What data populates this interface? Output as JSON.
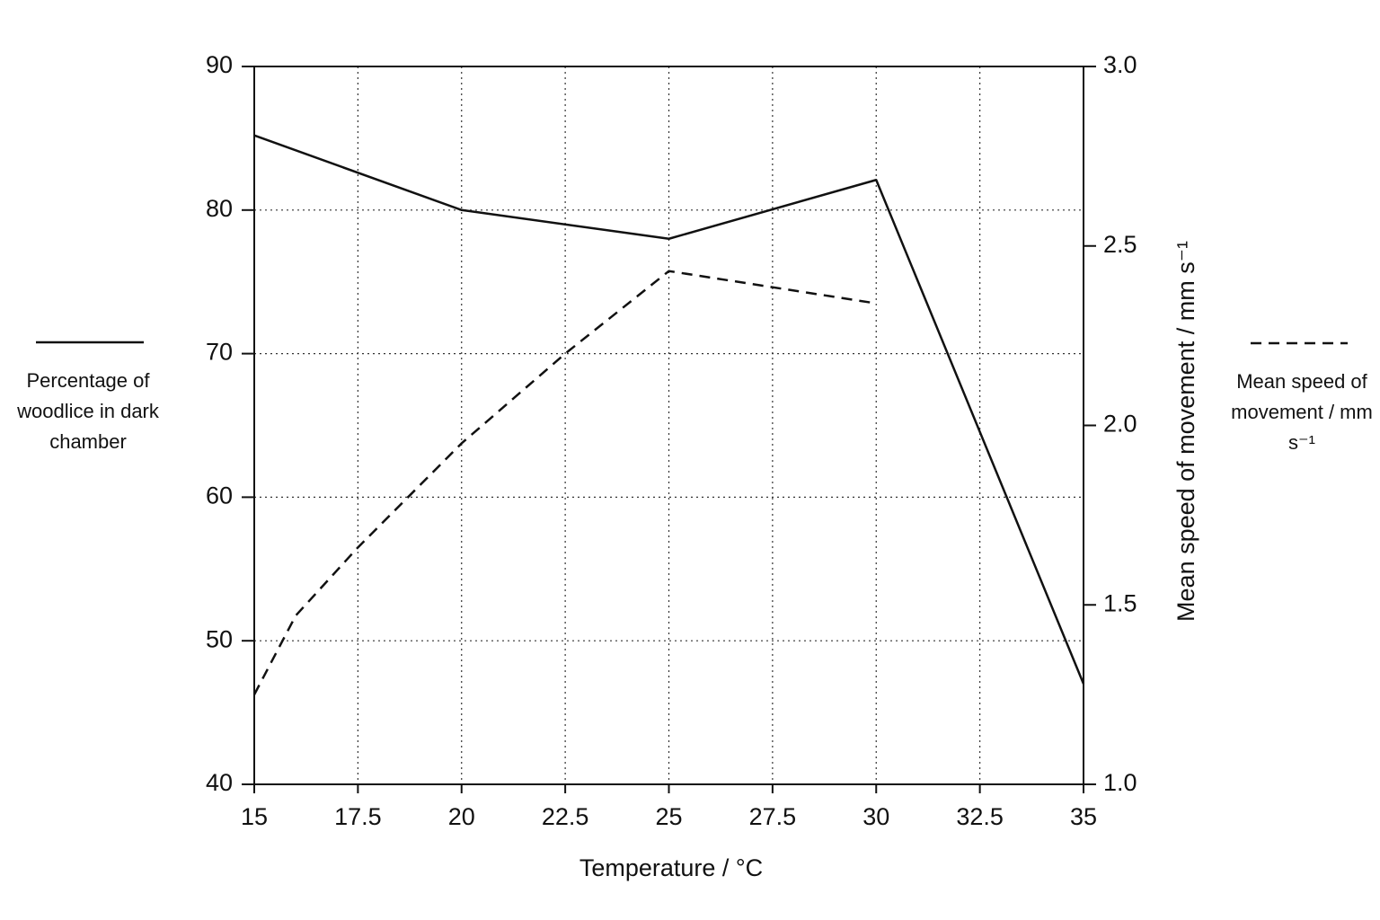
{
  "chart_data": {
    "type": "line",
    "x_label": "Temperature / °C",
    "y2_label": "Mean speed of movement / mm s⁻¹",
    "xlim": [
      15,
      35
    ],
    "xticks": [
      15,
      17.5,
      20,
      22.5,
      25,
      27.5,
      30,
      32.5,
      35
    ],
    "ylim": [
      40,
      90
    ],
    "yticks": [
      40,
      50,
      60,
      70,
      80,
      90
    ],
    "y2lim": [
      1,
      3
    ],
    "y2ticks": [
      {
        "value": 1,
        "label": "1.0"
      },
      {
        "value": 1.5,
        "label": "1.5"
      },
      {
        "value": 2,
        "label": "2.0"
      },
      {
        "value": 2.5,
        "label": "2.5"
      },
      {
        "value": 3,
        "label": "3.0"
      }
    ],
    "grid": true,
    "series": [
      {
        "name": "Percentage of woodlice in dark chamber",
        "color": "#111111",
        "style": "solid",
        "x": [
          15,
          20,
          25,
          30,
          35
        ],
        "values": [
          85.2,
          80,
          78,
          82.1,
          47
        ]
      },
      {
        "name": "Mean speed of movement / mm s⁻¹",
        "color": "#111111",
        "style": "dashed",
        "axis": "y2",
        "x": [
          15,
          16,
          17.5,
          20,
          22.5,
          25,
          30
        ],
        "values": [
          1.25,
          1.47,
          1.66,
          1.95,
          2.2,
          2.43,
          2.34
        ]
      }
    ]
  }
}
